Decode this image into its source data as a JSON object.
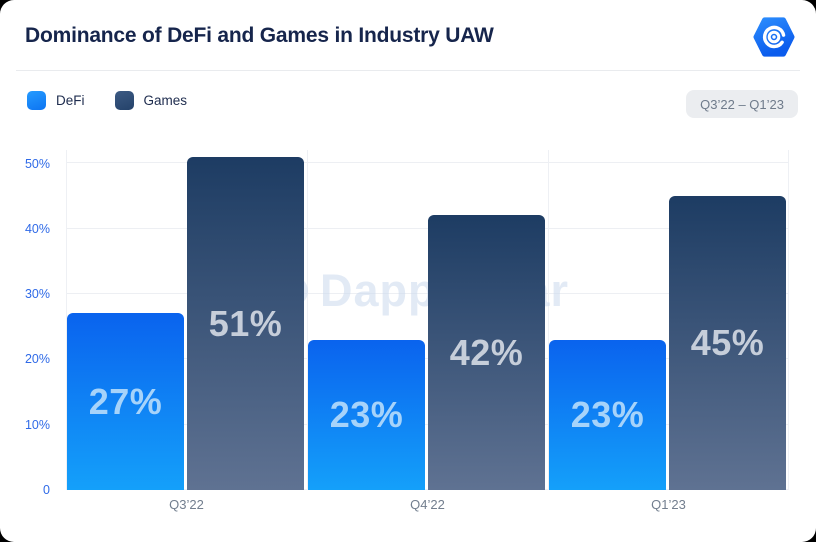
{
  "header": {
    "logo_icon": "dappradar-logo"
  },
  "legend": {
    "items": [
      {
        "label": "DeFi"
      },
      {
        "label": "Games"
      }
    ]
  },
  "period_badge": {
    "label": "Q3’22 – Q1’23"
  },
  "watermark": {
    "text": "DappRadar"
  },
  "chart_data": {
    "type": "bar",
    "title": "Dominance of DeFi and Games in Industry UAW",
    "categories": [
      "Q3’22",
      "Q4’22",
      "Q1’23"
    ],
    "series": [
      {
        "name": "DeFi",
        "values": [
          27,
          23,
          23
        ],
        "color_top": "#0a63ee",
        "color_bottom": "#14a0fa",
        "label_color": "#a6d3fa"
      },
      {
        "name": "Games",
        "values": [
          51,
          42,
          45
        ],
        "color_top": "#1d3c63",
        "color_bottom": "#5f7292",
        "label_color": "#c6ceda"
      }
    ],
    "value_suffix": "%",
    "yticks": [
      "0",
      "10%",
      "20%",
      "30%",
      "40%",
      "50%"
    ],
    "ylim": [
      0,
      52
    ],
    "grid": true,
    "legend_position": "top-left",
    "colors": {
      "axis_label": "#2f6ae7",
      "xaxis_label": "#727e8e",
      "title": "#16254c",
      "badge_bg": "#ebedf0",
      "badge_text": "#6f7b8b",
      "brand_blue": "#1377f5"
    }
  }
}
